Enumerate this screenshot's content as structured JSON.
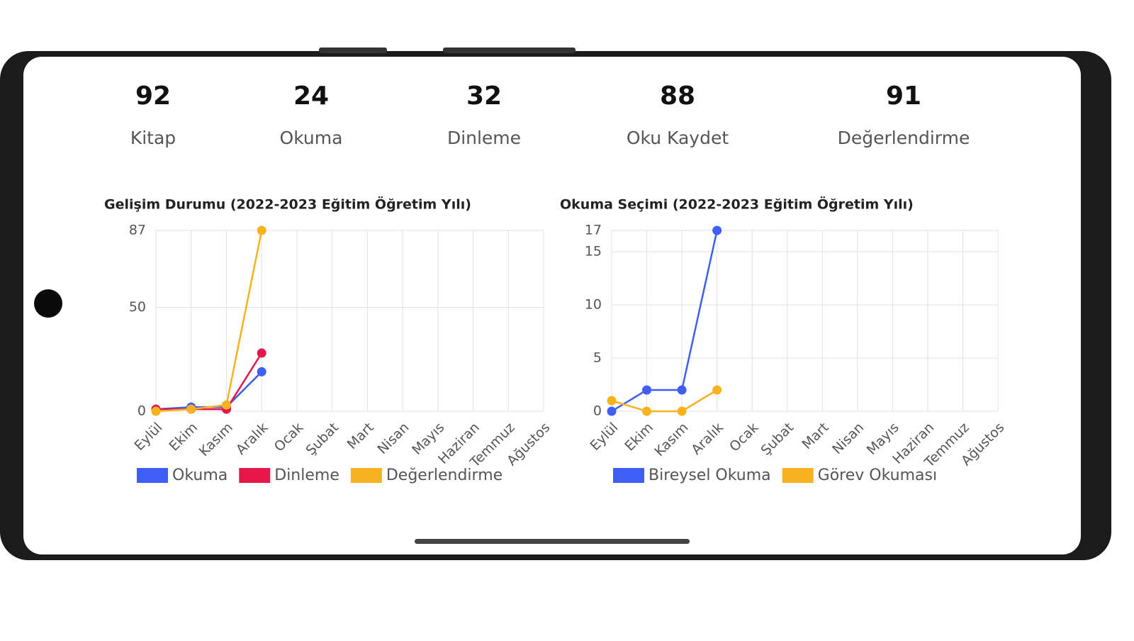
{
  "stats": [
    {
      "value": "92",
      "label": "Kitap"
    },
    {
      "value": "24",
      "label": "Okuma"
    },
    {
      "value": "32",
      "label": "Dinleme"
    },
    {
      "value": "88",
      "label": "Oku Kaydet"
    },
    {
      "value": "91",
      "label": "Değerlendirme"
    }
  ],
  "chart_data": [
    {
      "type": "line",
      "title": "Gelişim Durumu (2022-2023 Eğitim Öğretim Yılı)",
      "categories": [
        "Eylül",
        "Ekim",
        "Kasım",
        "Aralık",
        "Ocak",
        "Şubat",
        "Mart",
        "Nisan",
        "Mayıs",
        "Haziran",
        "Temmuz",
        "Ağustos"
      ],
      "series": [
        {
          "name": "Okuma",
          "color": "#3f5ef5",
          "values": [
            1,
            2,
            2,
            19,
            null,
            null,
            null,
            null,
            null,
            null,
            null,
            null
          ]
        },
        {
          "name": "Dinleme",
          "color": "#e8174b",
          "values": [
            1,
            1,
            1,
            28,
            null,
            null,
            null,
            null,
            null,
            null,
            null,
            null
          ]
        },
        {
          "name": "Değerlendirme",
          "color": "#f8b21f",
          "values": [
            0,
            1,
            3,
            87,
            null,
            null,
            null,
            null,
            null,
            null,
            null,
            null
          ]
        }
      ],
      "ylim": [
        0,
        87
      ],
      "yticks": [
        0,
        50,
        87
      ],
      "grid": true
    },
    {
      "type": "line",
      "title": "Okuma Seçimi (2022-2023 Eğitim Öğretim Yılı)",
      "categories": [
        "Eylül",
        "Ekim",
        "Kasım",
        "Aralık",
        "Ocak",
        "Şubat",
        "Mart",
        "Nisan",
        "Mayıs",
        "Haziran",
        "Temmuz",
        "Ağustos"
      ],
      "series": [
        {
          "name": "Bireysel Okuma",
          "color": "#3f5ef5",
          "values": [
            0,
            2,
            2,
            17,
            null,
            null,
            null,
            null,
            null,
            null,
            null,
            null
          ]
        },
        {
          "name": "Görev Okuması",
          "color": "#f8b21f",
          "values": [
            1,
            0,
            0,
            2,
            null,
            null,
            null,
            null,
            null,
            null,
            null,
            null
          ]
        }
      ],
      "ylim": [
        0,
        17
      ],
      "yticks": [
        0,
        5,
        10,
        15,
        17
      ],
      "grid": true
    }
  ]
}
